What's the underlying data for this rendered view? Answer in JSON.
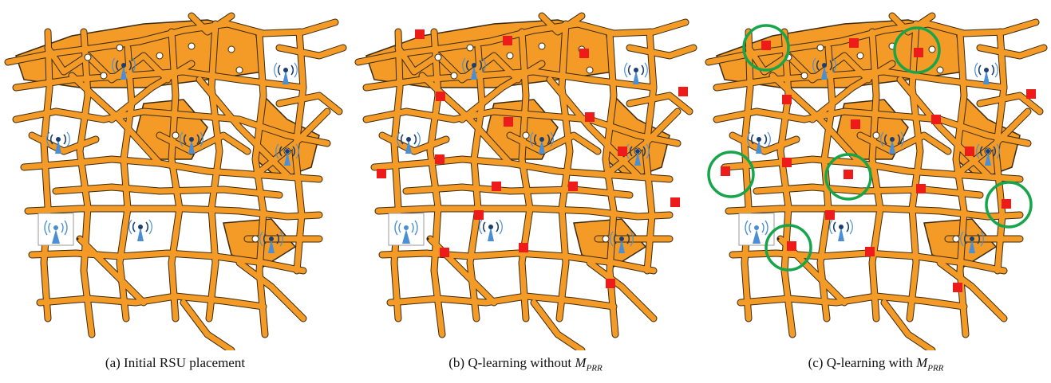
{
  "figure": {
    "panels": [
      {
        "id": "a",
        "caption_label": "(a)",
        "caption_text": "Initial RSU placement",
        "caption_math": "",
        "caption_math_sub": "",
        "rsus": 8,
        "red_markers": 0,
        "green_circles": 0
      },
      {
        "id": "b",
        "caption_label": "(b)",
        "caption_text": "Q-learning without",
        "caption_math": "M",
        "caption_math_sub": "PRR",
        "rsus": 8,
        "red_markers": 17,
        "green_circles": 0
      },
      {
        "id": "c",
        "caption_label": "(c)",
        "caption_text": "Q-learning with",
        "caption_math": "M",
        "caption_math_sub": "PRR",
        "rsus": 8,
        "red_markers": 17,
        "green_circles": 6
      }
    ],
    "colors": {
      "road": "#F39B26",
      "road_outline": "#3a2a10",
      "rsu_antenna": "#4a8fd6",
      "rsu_dark": "#1c3f73",
      "red_marker": "#ee1b1b",
      "green_circle": "#16a54a"
    }
  }
}
